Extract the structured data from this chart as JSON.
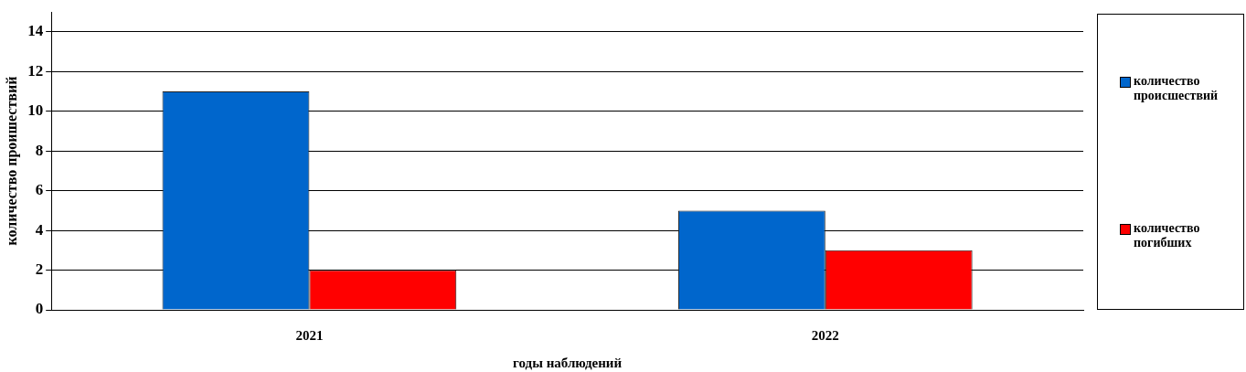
{
  "chart_data": {
    "type": "bar",
    "categories": [
      "2021",
      "2022"
    ],
    "series": [
      {
        "name": "количество происшествий",
        "color": "#0066cc",
        "values": [
          11,
          5
        ]
      },
      {
        "name": "количество погибших",
        "color": "#ff0000",
        "values": [
          2,
          3
        ]
      }
    ],
    "xlabel": "годы наблюдений",
    "ylabel": "количество проишествий",
    "ylim": [
      0,
      15
    ],
    "yticks": [
      0,
      2,
      4,
      6,
      8,
      10,
      12,
      14
    ],
    "grid": "y",
    "legend": "right"
  }
}
